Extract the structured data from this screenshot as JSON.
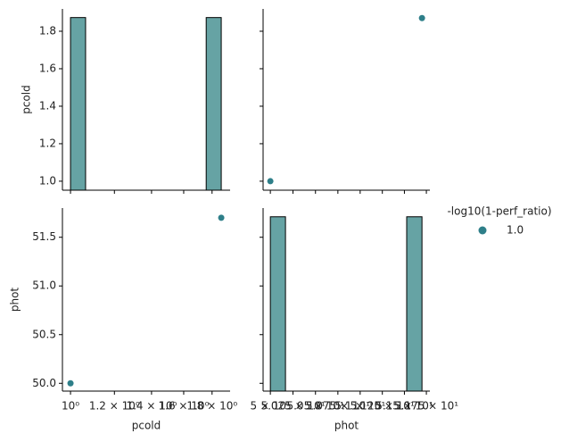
{
  "chart_data": [
    {
      "type": "histogram",
      "bins": [
        1,
        1.0646,
        1.1334,
        1.2066,
        1.2846,
        1.3676,
        1.4559,
        1.55,
        1.6501,
        1.7567,
        1.87
      ],
      "values": [
        1,
        0,
        0,
        0,
        0,
        0,
        0,
        0,
        0,
        1
      ],
      "ylim": [
        0,
        1.05
      ],
      "color": "#66a3a4",
      "edgecolor": "#000000"
    },
    {
      "type": "scatter",
      "xlabel": "phot",
      "ylabel": "pcold",
      "x": [
        50,
        51.7
      ],
      "values": [
        1.0,
        1.87
      ],
      "color": "#2e7f89",
      "xscale": "log",
      "xlim": [
        49.92,
        51.79
      ],
      "ylim": [
        0.952,
        1.919
      ],
      "xticks": [
        {
          "value": 50,
          "label": "5 × 10¹"
        },
        {
          "value": 50.25,
          "label": "5.025 × 10¹"
        },
        {
          "value": 50.5,
          "label": "5.05 × 10¹"
        },
        {
          "value": 50.75,
          "label": "5.075 × 10¹"
        },
        {
          "value": 51,
          "label": "5.1 × 10¹"
        },
        {
          "value": 51.25,
          "label": "5.125 × 10¹"
        },
        {
          "value": 51.5,
          "label": "5.15 × 10¹"
        },
        {
          "value": 51.75,
          "label": "5.175 × 10¹"
        }
      ],
      "yticks": [
        {
          "value": 1,
          "label": "1.0"
        },
        1.2,
        1.4,
        1.6,
        1.8
      ]
    },
    {
      "type": "scatter",
      "xlabel": "pcold",
      "ylabel": "phot",
      "x": [
        1.0,
        1.87
      ],
      "values": [
        50.0,
        51.7
      ],
      "color": "#2e7f89",
      "xscale": "log",
      "xlim": [
        0.967,
        1.94
      ],
      "ylim": [
        49.92,
        51.8
      ],
      "xticks": [
        {
          "value": 1,
          "label": "10⁰"
        },
        {
          "value": 1.2,
          "label": "1.2 × 10⁰"
        },
        {
          "value": 1.4,
          "label": "1.4 × 10⁰"
        },
        {
          "value": 1.6,
          "label": "1.6 × 10⁰"
        },
        {
          "value": 1.8,
          "label": "1.8 × 10⁰"
        }
      ],
      "yticks": [
        {
          "value": 50,
          "label": "50.0"
        },
        50.5,
        {
          "value": 51,
          "label": "51.0"
        },
        51.5
      ]
    },
    {
      "type": "histogram",
      "bins": [
        50,
        50.167,
        50.335,
        50.503,
        50.672,
        50.842,
        51.012,
        51.183,
        51.354,
        51.526,
        51.7
      ],
      "values": [
        1,
        0,
        0,
        0,
        0,
        0,
        0,
        0,
        0,
        1
      ],
      "ylim": [
        0,
        1.05
      ],
      "color": "#66a3a4",
      "edgecolor": "#000000"
    }
  ],
  "legend": {
    "title": "-log10(1-perf_ratio)",
    "labels": [
      "1.0"
    ],
    "color": "#2e7f89"
  }
}
